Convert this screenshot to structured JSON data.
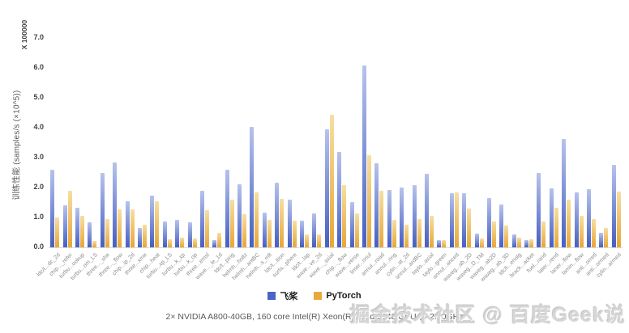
{
  "chart_data": {
    "type": "bar",
    "title": "",
    "xlabel": "",
    "ylabel": "训练性能 (samples/s (×10^5))",
    "y_multiplier_label": "X 100000",
    "ylim": [
      0,
      7
    ],
    "ytick_step": 1.0,
    "ytick_labels": [
      "0.0",
      "1.0",
      "2.0",
      "3.0",
      "4.0",
      "5.0",
      "6.0",
      "7.0"
    ],
    "grid": false,
    "legend_position": "bottom",
    "categories": [
      "ldc/t...dc_2d",
      "chip..._refer",
      "turbu...ookup",
      "turbu...om_LS",
      "three..._she",
      "three..._flow",
      "chip...ip_2d",
      "three...xme",
      "chip...heat",
      "turbu...xp_LS",
      "turbu...k_xp",
      "turbu...k_op",
      "three...emsl",
      "wave..._le_1d",
      "ldc/t...ping",
      "helmh...holtz",
      "helmh...antBC",
      "helmh...s_mlt",
      "ldc/t...ition",
      "surfa...phere",
      "ldc/t...lap",
      "wave...ve_2d",
      "wave..._axial",
      "chip..._flow",
      "wave...verse",
      "limer...nnul",
      "annul...road",
      "annul...ring",
      "cylin...at_2d",
      "annul...ardBC",
      "taylo...axial",
      "taylo...green",
      "annul...anced",
      "waveg...ab_2D",
      "waveg...D_TM",
      "waveg...ab2D",
      "waveg...ab_3D",
      "ldc/t...enolg",
      "brack...acket",
      "fuel...rand",
      "later...rend",
      "laner...flow",
      "lamin...flow",
      "anti...orred",
      "anti...ormed",
      "cylin...armed"
    ],
    "series": [
      {
        "name": "飞桨",
        "color_bottom": "#4a63c4",
        "color_top": "#b7c3ec",
        "values": [
          2.6,
          1.4,
          1.33,
          0.85,
          2.5,
          2.85,
          1.55,
          0.65,
          1.72,
          0.86,
          0.92,
          0.84,
          1.89,
          0.25,
          2.59,
          2.1,
          4.03,
          1.16,
          2.16,
          1.59,
          0.9,
          1.14,
          3.95,
          3.19,
          1.51,
          6.09,
          2.82,
          1.92,
          2.0,
          2.07,
          2.46,
          0.24,
          1.8,
          1.8,
          0.45,
          1.65,
          1.44,
          0.42,
          0.24,
          2.48,
          1.98,
          3.63,
          1.83,
          1.95,
          0.48,
          2.75
        ]
      },
      {
        "name": "PyTorch",
        "color_bottom": "#e8a93c",
        "color_top": "#f6dfa2",
        "values": [
          1.0,
          1.9,
          1.05,
          0.22,
          0.95,
          1.28,
          1.27,
          0.76,
          1.55,
          0.26,
          0.33,
          0.3,
          1.24,
          0.49,
          1.6,
          1.1,
          1.85,
          0.93,
          1.62,
          0.89,
          0.43,
          0.43,
          4.44,
          2.08,
          1.14,
          3.09,
          1.89,
          0.93,
          0.75,
          0.95,
          1.06,
          0.25,
          1.85,
          1.3,
          0.3,
          0.86,
          0.72,
          0.32,
          0.27,
          0.86,
          1.32,
          1.59,
          1.05,
          0.95,
          0.66,
          1.86
        ]
      }
    ]
  },
  "legend": {
    "paddle_label": "飞桨",
    "pytorch_label": "PyTorch"
  },
  "footer": {
    "caption": "2× NVIDIA A800-40GB, 160 core Intel(R) Xeon(R) Gold 6148 CPU @ 2.40GHz"
  },
  "watermark": {
    "text": "掘金技术社区 @ 百度Geek说"
  },
  "colors": {
    "paddle_blue": "#4a63c4",
    "pytorch_yellow": "#e8a93c",
    "axis_line": "#d9d9d9",
    "tick_text": "#404040",
    "label_text": "#8c8c8c"
  }
}
